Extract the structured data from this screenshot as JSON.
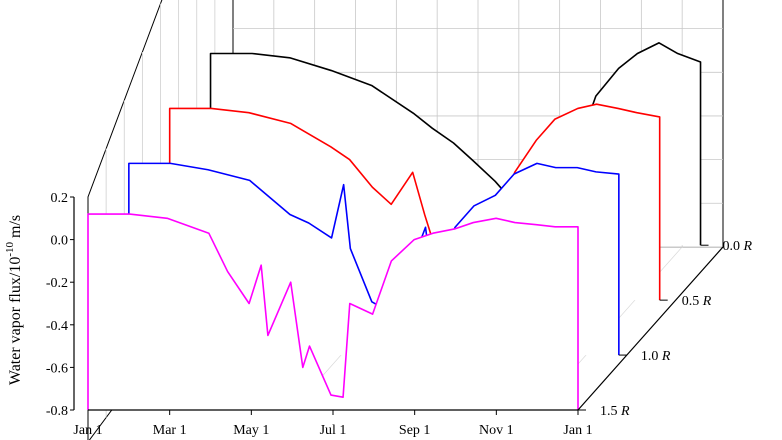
{
  "chart_data": {
    "type": "line",
    "title": "",
    "ylabel": "Water vapor flux/10",
    "ylabel_exp": "-10",
    "ylabel_unit": " m/s",
    "xlabel": "",
    "x_ticks": [
      "Jan 1",
      "Mar 1",
      "May 1",
      "Jul 1",
      "Sep 1",
      "Nov 1",
      "Jan 1"
    ],
    "y_ticks": [
      "0.2",
      "0.0",
      "-0.2",
      "-0.4",
      "-0.6",
      "-0.8"
    ],
    "ylim": [
      -0.8,
      0.2
    ],
    "grid": true,
    "projection": "3d-waterfall",
    "series": [
      {
        "name": "0.0 R",
        "label_base": "0.0",
        "label_unit": "R",
        "color": "#000000",
        "x": [
          "Jan 1",
          "Feb 1",
          "Mar 1",
          "Apr 1",
          "May 1",
          "Jun 1",
          "Jun 15",
          "Jul 1",
          "Jul 15",
          "Aug 1",
          "Aug 15",
          "Sep 1",
          "Sep 15",
          "Oct 1",
          "Oct 15",
          "Nov 1",
          "Nov 15",
          "Dec 1",
          "Dec 15",
          "Jan 1"
        ],
        "y": [
          0.1,
          0.1,
          0.08,
          0.02,
          -0.05,
          -0.18,
          -0.25,
          -0.32,
          -0.4,
          -0.5,
          -0.6,
          -0.72,
          -0.68,
          -0.35,
          -0.1,
          0.03,
          0.1,
          0.15,
          0.1,
          0.06
        ]
      },
      {
        "name": "0.5 R",
        "label_base": "0.5",
        "label_unit": "R",
        "color": "#ff0000",
        "x": [
          "Jan 1",
          "Feb 1",
          "Mar 1",
          "Apr 1",
          "May 1",
          "May 15",
          "Jun 1",
          "Jun 15",
          "Jul 1",
          "Jul 10",
          "Jul 15",
          "Aug 1",
          "Aug 15",
          "Sep 1",
          "Sep 15",
          "Oct 1",
          "Oct 15",
          "Nov 1",
          "Nov 15",
          "Dec 1",
          "Dec 15",
          "Jan 1"
        ],
        "y": [
          0.1,
          0.1,
          0.08,
          0.03,
          -0.08,
          -0.14,
          -0.27,
          -0.35,
          -0.2,
          -0.4,
          -0.5,
          -0.62,
          -0.66,
          -0.45,
          -0.2,
          -0.05,
          0.05,
          0.1,
          0.12,
          0.1,
          0.08,
          0.06
        ]
      },
      {
        "name": "1.0 R",
        "label_base": "1.0",
        "label_unit": "R",
        "color": "#0000ff",
        "x": [
          "Jan 1",
          "Feb 1",
          "Mar 1",
          "Apr 1",
          "May 1",
          "May 15",
          "Jun 1",
          "Jun 10",
          "Jun 15",
          "Jul 1",
          "Jul 15",
          "Aug 1",
          "Aug 10",
          "Aug 15",
          "Sep 1",
          "Sep 15",
          "Oct 1",
          "Oct 15",
          "Nov 1",
          "Nov 15",
          "Dec 1",
          "Dec 15",
          "Jan 1"
        ],
        "y": [
          0.1,
          0.1,
          0.07,
          0.02,
          -0.14,
          -0.18,
          -0.25,
          0.0,
          -0.3,
          -0.55,
          -0.6,
          -0.35,
          -0.2,
          -0.45,
          -0.2,
          -0.1,
          -0.05,
          0.05,
          0.1,
          0.08,
          0.08,
          0.06,
          0.05
        ]
      },
      {
        "name": "1.5 R",
        "label_base": "1.5",
        "label_unit": "R",
        "color": "#ff00ff",
        "x": [
          "Jan 1",
          "Feb 1",
          "Mar 1",
          "Apr 1",
          "Apr 15",
          "May 1",
          "May 10",
          "May 15",
          "Jun 1",
          "Jun 10",
          "Jun 15",
          "Jul 1",
          "Jul 10",
          "Jul 15",
          "Aug 1",
          "Aug 15",
          "Sep 1",
          "Sep 15",
          "Oct 1",
          "Oct 15",
          "Nov 1",
          "Nov 15",
          "Dec 1",
          "Dec 15",
          "Jan 1"
        ],
        "y": [
          0.12,
          0.12,
          0.1,
          0.03,
          -0.15,
          -0.3,
          -0.12,
          -0.45,
          -0.2,
          -0.6,
          -0.5,
          -0.73,
          -0.74,
          -0.3,
          -0.35,
          -0.1,
          0.0,
          0.03,
          0.05,
          0.08,
          0.1,
          0.08,
          0.07,
          0.06,
          0.06
        ]
      }
    ]
  }
}
